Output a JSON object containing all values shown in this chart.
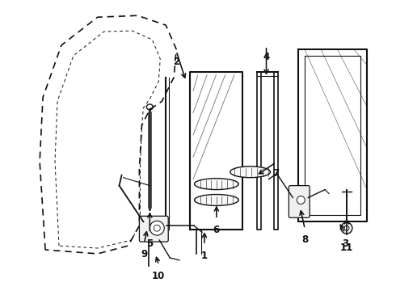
{
  "bg_color": "#ffffff",
  "lc": "#111111",
  "figsize": [
    4.9,
    3.6
  ],
  "dpi": 100
}
